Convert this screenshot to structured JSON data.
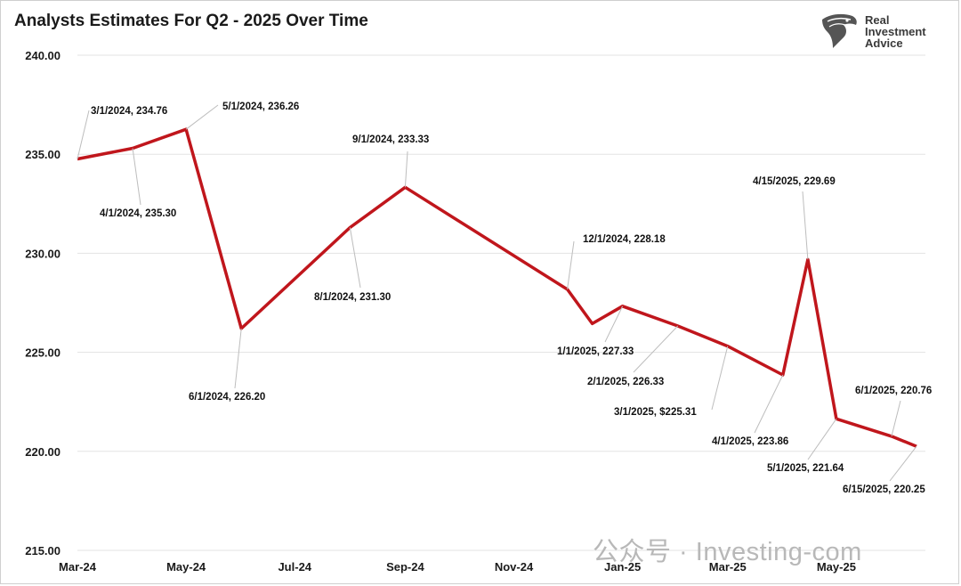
{
  "title": "Analysts Estimates For Q2 - 2025 Over Time",
  "logo": {
    "lines": [
      "Real",
      "Investment",
      "Advice"
    ],
    "icon": "eagle-head-icon"
  },
  "watermark": "公众号 · Investing-com",
  "colors": {
    "line": "#c0161c",
    "leader": "#bdbdbd",
    "grid": "#e3e3e3"
  },
  "chart_data": {
    "type": "line",
    "title": "Analysts Estimates For Q2 - 2025 Over Time",
    "xlabel": "",
    "ylabel": "",
    "ylim": [
      215,
      240
    ],
    "xlim": [
      "2024-03-01",
      "2025-06-20"
    ],
    "grid": "horizontal",
    "yticks": [
      "215.00",
      "220.00",
      "225.00",
      "230.00",
      "235.00",
      "240.00"
    ],
    "xticks": [
      {
        "date": "2024-03-01",
        "label": "Mar-24"
      },
      {
        "date": "2024-05-01",
        "label": "May-24"
      },
      {
        "date": "2024-07-01",
        "label": "Jul-24"
      },
      {
        "date": "2024-09-01",
        "label": "Sep-24"
      },
      {
        "date": "2024-11-01",
        "label": "Nov-24"
      },
      {
        "date": "2025-01-01",
        "label": "Jan-25"
      },
      {
        "date": "2025-03-01",
        "label": "Mar-25"
      },
      {
        "date": "2025-05-01",
        "label": "May-25"
      }
    ],
    "points": [
      {
        "date": "2024-03-01",
        "value": 234.76,
        "label": "3/1/2024,  234.76"
      },
      {
        "date": "2024-04-01",
        "value": 235.3,
        "label": "4/1/2024,  235.30"
      },
      {
        "date": "2024-05-01",
        "value": 236.26,
        "label": "5/1/2024,  236.26"
      },
      {
        "date": "2024-06-01",
        "value": 226.2,
        "label": "6/1/2024, 226.20"
      },
      {
        "date": "2024-08-01",
        "value": 231.3,
        "label": "8/1/2024,  231.30"
      },
      {
        "date": "2024-09-01",
        "value": 233.33,
        "label": "9/1/2024,  233.33"
      },
      {
        "date": "2024-12-01",
        "value": 228.18,
        "label": "12/1/2024,  228.18"
      },
      {
        "date": "2024-12-15",
        "value": 226.45,
        "label": ""
      },
      {
        "date": "2025-01-01",
        "value": 227.33,
        "label": "1/1/2025,  227.33"
      },
      {
        "date": "2025-02-01",
        "value": 226.33,
        "label": "2/1/2025,  226.33"
      },
      {
        "date": "2025-03-01",
        "value": 225.31,
        "label": "3/1/2025, $225.31"
      },
      {
        "date": "2025-04-01",
        "value": 223.86,
        "label": "4/1/2025,  223.86"
      },
      {
        "date": "2025-04-15",
        "value": 229.69,
        "label": "4/15/2025,  229.69"
      },
      {
        "date": "2025-05-01",
        "value": 221.64,
        "label": "5/1/2025,  221.64"
      },
      {
        "date": "2025-06-01",
        "value": 220.76,
        "label": "6/1/2025,  220.76"
      },
      {
        "date": "2025-06-15",
        "value": 220.25,
        "label": "6/15/2025,  220.25"
      }
    ]
  }
}
